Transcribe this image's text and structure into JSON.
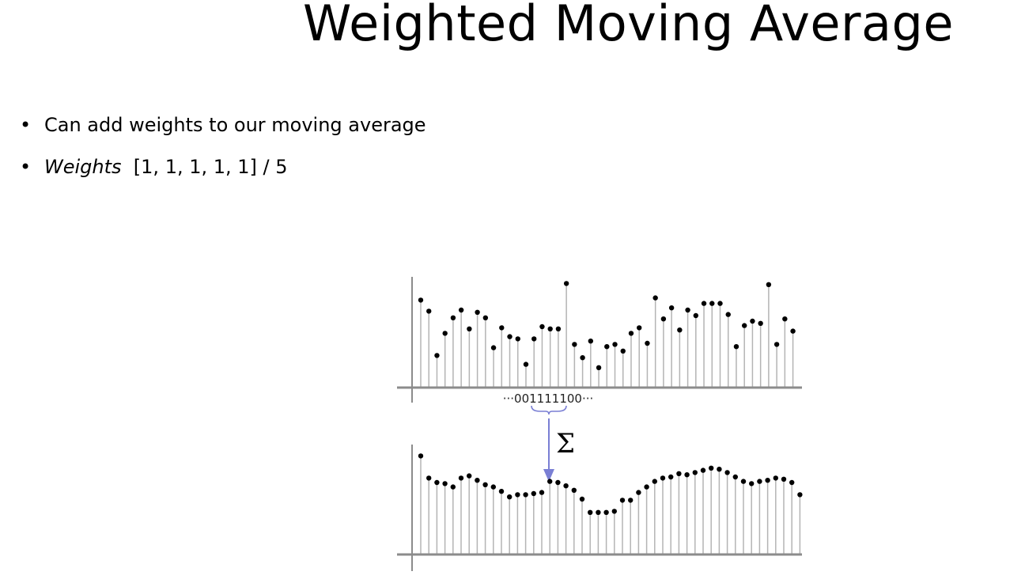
{
  "slide": {
    "title": "Weighted Moving Average",
    "bullets": [
      {
        "bullet": "•",
        "text": "Can add weights to our moving average"
      },
      {
        "bullet": "•",
        "label": "Weights",
        "text": "[1, 1, 1, 1, 1]  / 5"
      }
    ]
  },
  "figure": {
    "kernel_label": "···001111100···",
    "operator_symbol": "Σ",
    "arrow_color": "#7a7fd4",
    "stem_color": "#b4b4b4",
    "dot_color": "#000000",
    "input_signal": [
      0.79,
      0.69,
      0.29,
      0.49,
      0.63,
      0.7,
      0.53,
      0.68,
      0.63,
      0.36,
      0.54,
      0.46,
      0.44,
      0.21,
      0.44,
      0.55,
      0.53,
      0.53,
      0.94,
      0.39,
      0.27,
      0.42,
      0.18,
      0.37,
      0.39,
      0.33,
      0.49,
      0.54,
      0.4,
      0.81,
      0.62,
      0.72,
      0.52,
      0.7,
      0.65,
      0.76,
      0.76,
      0.76,
      0.66,
      0.37,
      0.56,
      0.6,
      0.58,
      0.93,
      0.39,
      0.62,
      0.51
    ],
    "output_signal": [
      0.89,
      0.69,
      0.65,
      0.64,
      0.61,
      0.69,
      0.71,
      0.67,
      0.63,
      0.61,
      0.57,
      0.52,
      0.54,
      0.54,
      0.55,
      0.56,
      0.66,
      0.65,
      0.62,
      0.58,
      0.5,
      0.38,
      0.38,
      0.38,
      0.39,
      0.49,
      0.49,
      0.56,
      0.61,
      0.66,
      0.69,
      0.7,
      0.73,
      0.72,
      0.74,
      0.76,
      0.78,
      0.77,
      0.74,
      0.7,
      0.66,
      0.64,
      0.66,
      0.67,
      0.69,
      0.68,
      0.65,
      0.54
    ]
  }
}
